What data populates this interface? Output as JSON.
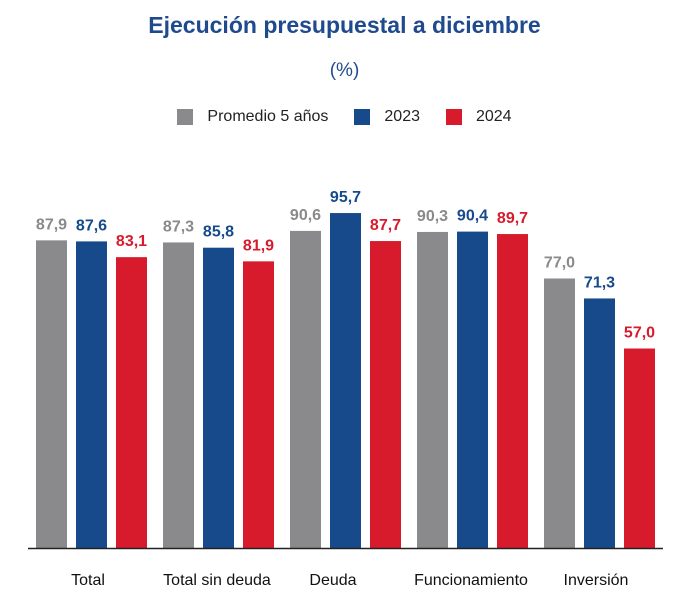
{
  "chart_data": {
    "type": "bar",
    "title": "Ejecución presupuestal a diciembre",
    "subtitle": "(%)",
    "categories": [
      "Total",
      "Total sin deuda",
      "Deuda",
      "Funcionamiento",
      "Inversión"
    ],
    "series": [
      {
        "name": "Promedio 5 años",
        "color": "#8a8a8d",
        "label_color": "#8a8a8d",
        "values": [
          87.9,
          87.3,
          90.6,
          90.3,
          77.0
        ],
        "labels": [
          "87,9",
          "87,3",
          "90,6",
          "90,3",
          "77,0"
        ]
      },
      {
        "name": "2023",
        "color": "#174a8b",
        "label_color": "#174a8b",
        "values": [
          87.6,
          85.8,
          95.7,
          90.4,
          71.3
        ],
        "labels": [
          "87,6",
          "85,8",
          "95,7",
          "90,4",
          "71,3"
        ]
      },
      {
        "name": "2024",
        "color": "#d71b2c",
        "label_color": "#d71b2c",
        "values": [
          83.1,
          81.9,
          87.7,
          89.7,
          57.0
        ],
        "labels": [
          "83,1",
          "81,9",
          "87,7",
          "89,7",
          "57,0"
        ]
      }
    ],
    "ylim": [
      0,
      100
    ],
    "legend_position": "top-center",
    "grid": false
  }
}
